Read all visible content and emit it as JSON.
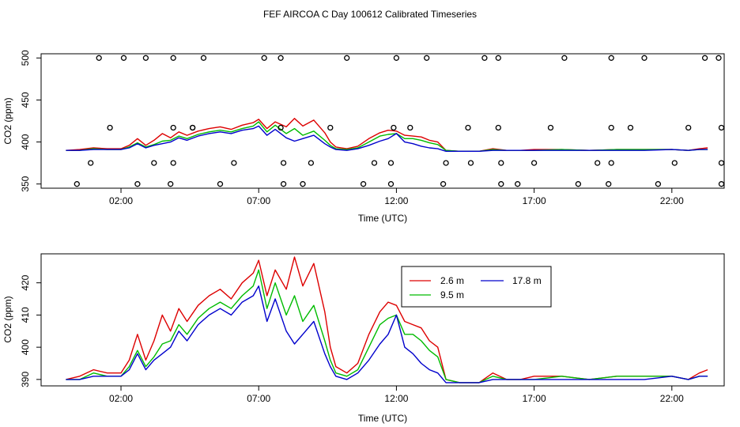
{
  "page": {
    "title": "FEF AIRCOA C  Day 100612  Calibrated Timeseries"
  },
  "colors": {
    "s1": "#dd0000",
    "s2": "#00bb00",
    "s3": "#0000cc",
    "marker": "#000000",
    "axis": "#000000"
  },
  "chart_data": [
    {
      "id": "top",
      "type": "line",
      "xlabel": "Time (UTC)",
      "ylabel": "CO2 (ppm)",
      "xlim": [
        -0.9,
        23.9
      ],
      "ylim": [
        345,
        505
      ],
      "xticks": [
        2,
        7,
        12,
        17,
        22
      ],
      "xtick_labels": [
        "02:00",
        "07:00",
        "12:00",
        "17:00",
        "22:00"
      ],
      "yticks": [
        350,
        400,
        450,
        500
      ],
      "ytick_labels": [
        "350",
        "400",
        "450",
        "500"
      ],
      "markers": {
        "x": [
          1.2,
          2.1,
          2.9,
          3.9,
          5.0,
          7.2,
          7.8,
          10.2,
          12.0,
          13.1,
          15.2,
          15.7,
          18.1,
          19.8,
          21.0,
          23.2,
          23.7,
          1.6,
          4.6,
          9.6,
          11.9,
          12.5,
          14.6,
          15.7,
          17.6,
          19.8,
          20.5,
          22.6,
          23.8,
          3.9,
          4.6,
          7.8,
          0.9,
          3.2,
          3.9,
          6.1,
          7.9,
          8.9,
          11.2,
          11.8,
          13.8,
          14.7,
          15.8,
          17.0,
          19.3,
          19.8,
          22.1,
          23.8,
          0.4,
          2.6,
          3.8,
          5.6,
          7.9,
          8.6,
          10.8,
          11.8,
          13.7,
          15.8,
          16.4,
          18.6,
          19.7,
          21.5,
          23.8
        ],
        "y": [
          500,
          500,
          500,
          500,
          500,
          500,
          500,
          500,
          500,
          500,
          500,
          500,
          500,
          500,
          500,
          500,
          500,
          417,
          417,
          417,
          417,
          417,
          417,
          417,
          417,
          417,
          417,
          417,
          417,
          417,
          417,
          417,
          375,
          375,
          375,
          375,
          375,
          375,
          375,
          375,
          375,
          375,
          375,
          375,
          375,
          375,
          375,
          375,
          350,
          350,
          350,
          350,
          350,
          350,
          350,
          350,
          350,
          350,
          350,
          350,
          350,
          350,
          350
        ]
      }
    },
    {
      "id": "bottom",
      "type": "line",
      "xlabel": "Time (UTC)",
      "ylabel": "CO2 (ppm)",
      "xlim": [
        -0.9,
        23.9
      ],
      "ylim": [
        388,
        429
      ],
      "xticks": [
        2,
        7,
        12,
        17,
        22
      ],
      "xtick_labels": [
        "02:00",
        "07:00",
        "12:00",
        "17:00",
        "22:00"
      ],
      "yticks": [
        390,
        400,
        410,
        420
      ],
      "ytick_labels": [
        "390",
        "400",
        "410",
        "420"
      ],
      "legend": {
        "position": "top-center"
      }
    }
  ],
  "series": [
    {
      "name": "2.6 m",
      "color_key": "s1",
      "x": [
        0,
        0.5,
        1,
        1.5,
        2,
        2.3,
        2.6,
        2.9,
        3.2,
        3.5,
        3.8,
        4.1,
        4.4,
        4.8,
        5.2,
        5.6,
        6.0,
        6.4,
        6.8,
        7.0,
        7.3,
        7.6,
        8.0,
        8.3,
        8.6,
        9.0,
        9.4,
        9.6,
        9.8,
        10.2,
        10.6,
        11.0,
        11.4,
        11.7,
        12.0,
        12.3,
        12.6,
        12.9,
        13.2,
        13.5,
        13.8,
        14.3,
        15.0,
        15.5,
        16.0,
        16.5,
        17.0,
        18,
        19,
        20,
        21,
        22,
        22.6,
        23.0,
        23.3
      ],
      "y": [
        390,
        391,
        393,
        392,
        392,
        396,
        404,
        396,
        402,
        410,
        405,
        412,
        408,
        413,
        416,
        418,
        415,
        420,
        423,
        427,
        416,
        424,
        418,
        428,
        419,
        426,
        411,
        400,
        394,
        392,
        395,
        404,
        411,
        414,
        413,
        408,
        407,
        406,
        402,
        400,
        390,
        389,
        389,
        392,
        390,
        390,
        391,
        391,
        390,
        391,
        391,
        391,
        390,
        392,
        393
      ]
    },
    {
      "name": "9.5 m",
      "color_key": "s2",
      "x": [
        0,
        0.5,
        1,
        1.5,
        2,
        2.3,
        2.6,
        2.9,
        3.2,
        3.5,
        3.8,
        4.1,
        4.4,
        4.8,
        5.2,
        5.6,
        6.0,
        6.4,
        6.8,
        7.0,
        7.3,
        7.6,
        8.0,
        8.3,
        8.6,
        9.0,
        9.4,
        9.6,
        9.8,
        10.2,
        10.6,
        11.0,
        11.4,
        11.7,
        12.0,
        12.3,
        12.6,
        12.9,
        13.2,
        13.5,
        13.8,
        14.3,
        15.0,
        15.5,
        16.0,
        16.5,
        17.0,
        18,
        19,
        20,
        21,
        22,
        22.6,
        23.0,
        23.3
      ],
      "y": [
        390,
        390,
        392,
        391,
        391,
        394,
        399,
        394,
        397,
        401,
        402,
        407,
        404,
        409,
        412,
        414,
        412,
        416,
        419,
        424,
        412,
        420,
        410,
        416,
        408,
        413,
        402,
        396,
        392,
        391,
        393,
        400,
        407,
        409,
        410,
        404,
        404,
        402,
        399,
        397,
        390,
        389,
        389,
        391,
        390,
        390,
        390,
        391,
        390,
        391,
        391,
        391,
        390,
        391,
        391
      ]
    },
    {
      "name": "17.8 m",
      "color_key": "s3",
      "x": [
        0,
        0.5,
        1,
        1.5,
        2,
        2.3,
        2.6,
        2.9,
        3.2,
        3.5,
        3.8,
        4.1,
        4.4,
        4.8,
        5.2,
        5.6,
        6.0,
        6.4,
        6.8,
        7.0,
        7.3,
        7.6,
        8.0,
        8.3,
        8.6,
        9.0,
        9.4,
        9.6,
        9.8,
        10.2,
        10.6,
        11.0,
        11.4,
        11.7,
        12.0,
        12.3,
        12.6,
        12.9,
        13.2,
        13.5,
        13.8,
        14.3,
        15.0,
        15.5,
        16.0,
        16.5,
        17.0,
        18,
        19,
        20,
        21,
        22,
        22.6,
        23.0,
        23.3
      ],
      "y": [
        390,
        390,
        391,
        391,
        391,
        393,
        398,
        393,
        396,
        398,
        400,
        405,
        402,
        407,
        410,
        412,
        410,
        414,
        416,
        419,
        408,
        415,
        405,
        401,
        404,
        408,
        398,
        394,
        391,
        390,
        392,
        396,
        401,
        404,
        410,
        400,
        398,
        395,
        393,
        392,
        389,
        389,
        389,
        390,
        390,
        390,
        390,
        390,
        390,
        390,
        390,
        391,
        390,
        391,
        391
      ]
    }
  ]
}
